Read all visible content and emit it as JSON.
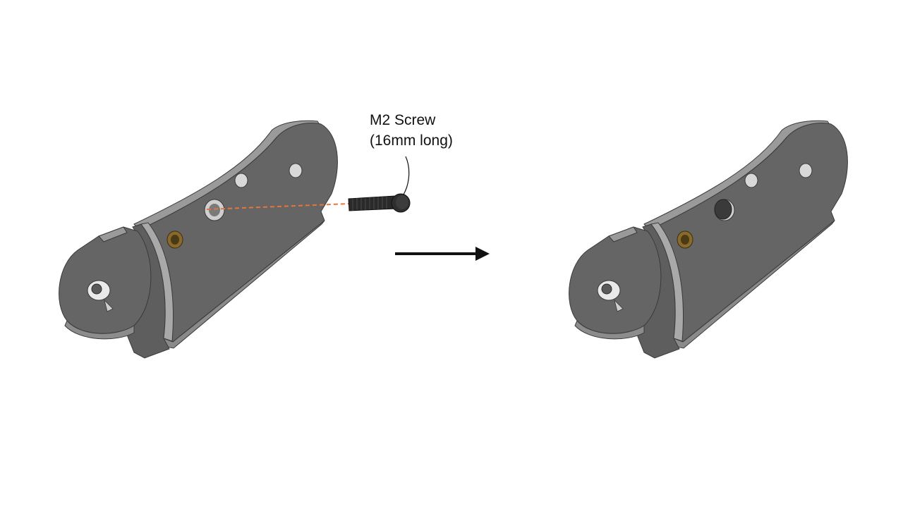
{
  "diagram": {
    "callout": {
      "line1": "M2 Screw",
      "line2": "(16mm long)"
    },
    "arrow_direction": "right",
    "panels": [
      {
        "state": "before",
        "parts": [
          "bracket",
          "m2-screw",
          "insertion-guide-line"
        ]
      },
      {
        "state": "after",
        "parts": [
          "bracket",
          "installed-screw-head"
        ]
      }
    ],
    "colors": {
      "part_face": "#656565",
      "part_edge": "#9a9a9a",
      "part_outline": "#3a3a3a",
      "screw": "#232323",
      "guide_line": "#e8743b",
      "brass_insert": "#8a6a2a",
      "arrow": "#111111"
    }
  }
}
